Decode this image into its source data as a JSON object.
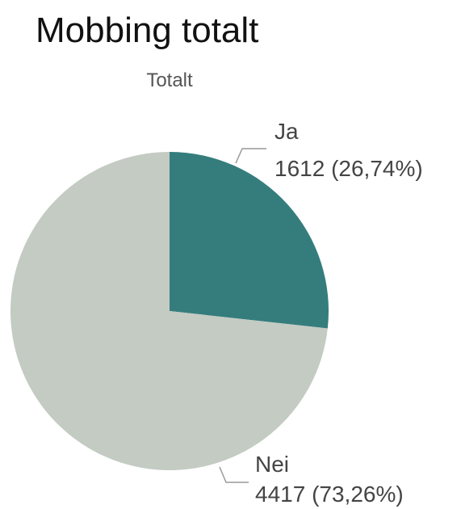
{
  "chart_data": {
    "type": "pie",
    "title": "Mobbing totalt",
    "subtitle": "Totalt",
    "categories": [
      "Ja",
      "Nei"
    ],
    "values": [
      1612,
      4417
    ],
    "value_labels": [
      "1612 (26,74%)",
      "4417 (73,26%)"
    ],
    "colors": [
      "#357d7d",
      "#c3cbc3"
    ]
  }
}
